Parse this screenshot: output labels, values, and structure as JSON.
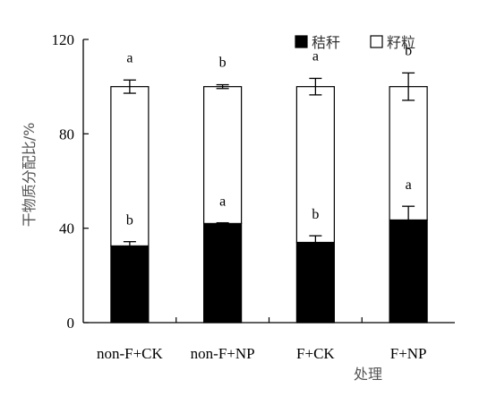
{
  "chart_data": {
    "type": "bar",
    "stacked": true,
    "categories": [
      "non-F+CK",
      "non-F+NP",
      "F+CK",
      "F+NP"
    ],
    "series": [
      {
        "name": "秸秆",
        "color": "#000000",
        "values": [
          32.5,
          42,
          34,
          43.5
        ],
        "errors": [
          1.8,
          0.3,
          2.8,
          5.8
        ],
        "letters": [
          "b",
          "a",
          "b",
          "a"
        ]
      },
      {
        "name": "籽粒",
        "color": "#ffffff",
        "values": [
          67.5,
          58,
          66,
          56.5
        ],
        "errors": [
          2.8,
          0.8,
          3.5,
          5.8
        ],
        "letters": [
          "a",
          "b",
          "a",
          "b"
        ]
      }
    ],
    "ylabel": "干物质分配比/%",
    "xlabel": "处理",
    "ylim": [
      0,
      120
    ],
    "yticks": [
      "0",
      "40",
      "80",
      "120"
    ],
    "legend_position": "top-right",
    "grid": false
  }
}
